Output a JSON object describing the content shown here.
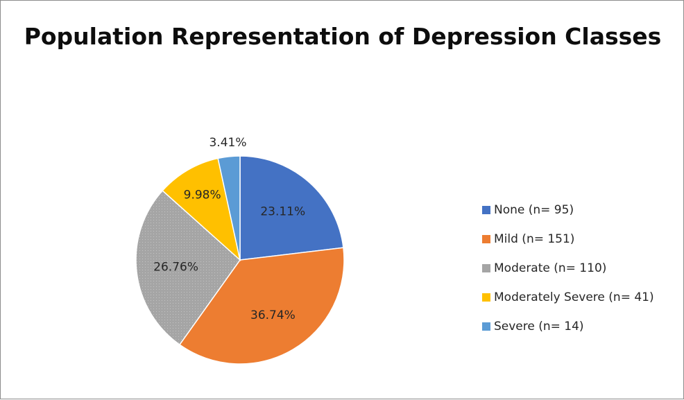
{
  "chart_data": {
    "type": "pie",
    "title": "Population Representation of Depression Classes",
    "slices": [
      {
        "label": "None (n= 95)",
        "value": 95,
        "percent_label": "23.11%",
        "color": "#4472C4"
      },
      {
        "label": "Mild (n= 151)",
        "value": 151,
        "percent_label": "36.74%",
        "color": "#ED7D31"
      },
      {
        "label": "Moderate (n= 110)",
        "value": 110,
        "percent_label": "26.76%",
        "color": "#A5A5A5"
      },
      {
        "label": "Moderately Severe (n= 41)",
        "value": 41,
        "percent_label": "9.98%",
        "color": "#FFC000"
      },
      {
        "label": "Severe (n= 14)",
        "value": 14,
        "percent_label": "3.41%",
        "color": "#5B9BD5"
      }
    ],
    "start_angle_deg": 0,
    "direction": "clockwise",
    "legend_position": "right",
    "data_labels": "percent"
  }
}
